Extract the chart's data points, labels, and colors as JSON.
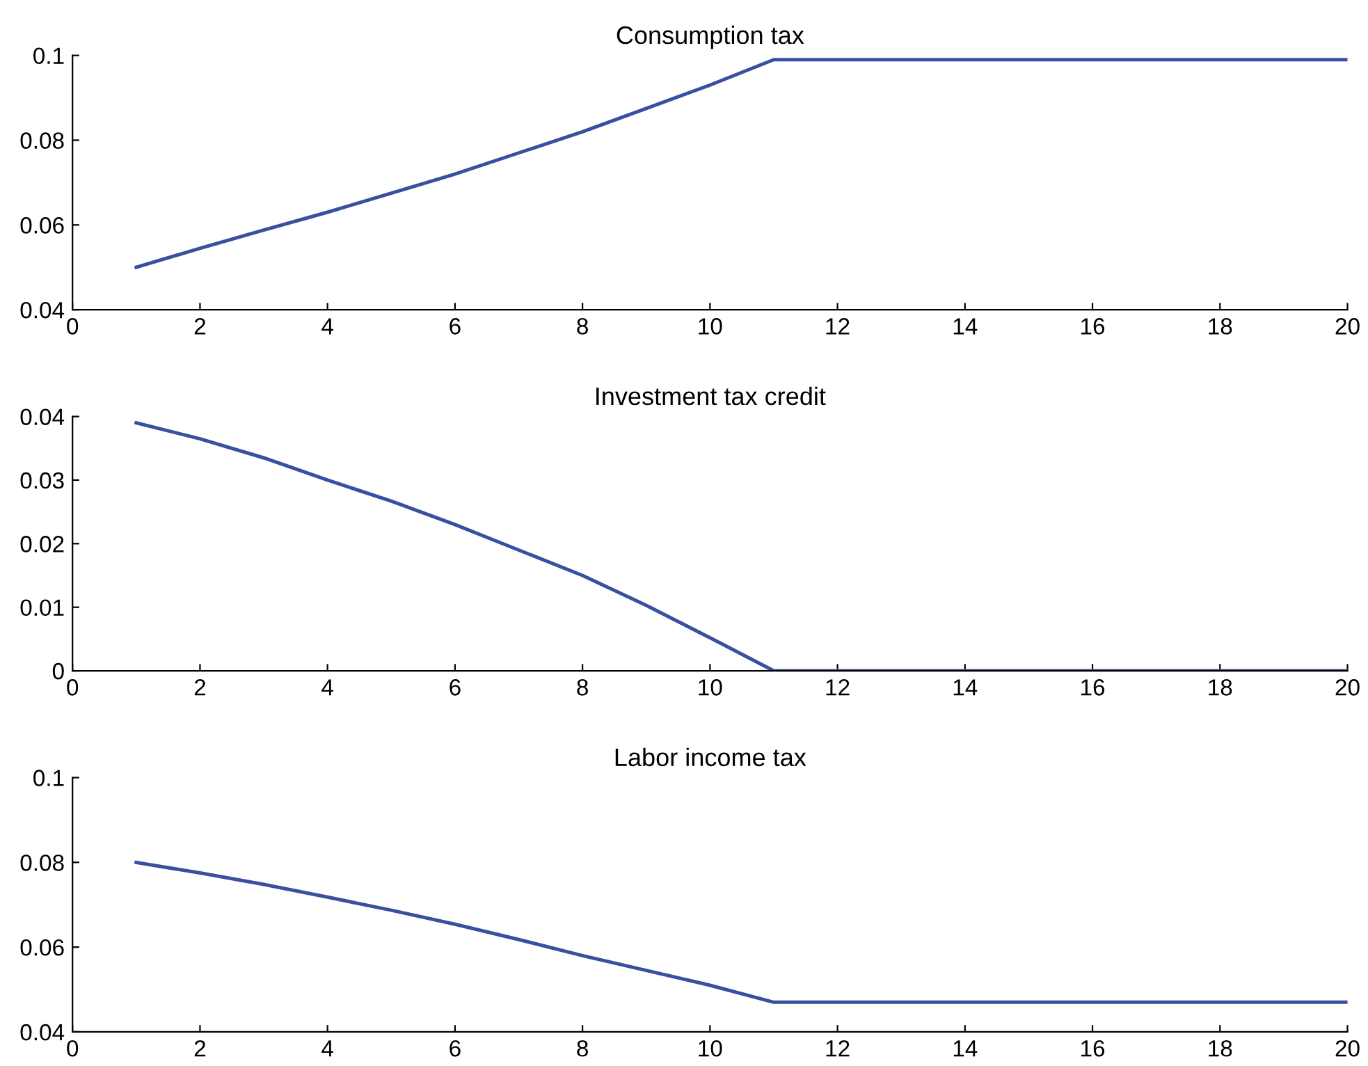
{
  "chart_data": [
    {
      "type": "line",
      "title": "Consumption tax",
      "x": [
        1,
        2,
        3,
        4,
        5,
        6,
        7,
        8,
        9,
        10,
        11,
        12,
        13,
        14,
        15,
        16,
        17,
        18,
        19,
        20
      ],
      "series": [
        {
          "color": "#3a4fa0",
          "values": [
            0.05,
            0.0545,
            0.0588,
            0.063,
            0.0675,
            0.072,
            0.077,
            0.082,
            0.0875,
            0.093,
            0.099,
            0.099,
            0.099,
            0.099,
            0.099,
            0.099,
            0.099,
            0.099,
            0.099,
            0.099
          ]
        }
      ],
      "xlim": [
        0,
        20
      ],
      "xticks": [
        0,
        2,
        4,
        6,
        8,
        10,
        12,
        14,
        16,
        18,
        20
      ],
      "ylim": [
        0.04,
        0.1
      ],
      "yticks": [
        0.04,
        0.06,
        0.08,
        0.1
      ]
    },
    {
      "type": "line",
      "title": "Investment tax credit",
      "x": [
        1,
        2,
        3,
        4,
        5,
        6,
        7,
        8,
        9,
        10,
        11,
        12,
        13,
        14,
        15,
        16,
        17,
        18,
        19,
        20
      ],
      "series": [
        {
          "color": "#3a4fa0",
          "values": [
            0.039,
            0.0365,
            0.0335,
            0.03,
            0.0267,
            0.023,
            0.019,
            0.015,
            0.0103,
            0.0052,
            0,
            0,
            0,
            0,
            0,
            0,
            0,
            0,
            0,
            0
          ]
        }
      ],
      "xlim": [
        0,
        20
      ],
      "xticks": [
        0,
        2,
        4,
        6,
        8,
        10,
        12,
        14,
        16,
        18,
        20
      ],
      "ylim": [
        0,
        0.04
      ],
      "yticks": [
        0,
        0.01,
        0.02,
        0.03,
        0.04
      ]
    },
    {
      "type": "line",
      "title": "Labor income tax",
      "x": [
        1,
        2,
        3,
        4,
        5,
        6,
        7,
        8,
        9,
        10,
        11,
        12,
        13,
        14,
        15,
        16,
        17,
        18,
        19,
        20
      ],
      "series": [
        {
          "color": "#3a4fa0",
          "values": [
            0.08,
            0.0775,
            0.0748,
            0.0718,
            0.0687,
            0.0654,
            0.0618,
            0.058,
            0.0545,
            0.051,
            0.047,
            0.047,
            0.047,
            0.047,
            0.047,
            0.047,
            0.047,
            0.047,
            0.047,
            0.047
          ]
        }
      ],
      "xlim": [
        0,
        20
      ],
      "xticks": [
        0,
        2,
        4,
        6,
        8,
        10,
        12,
        14,
        16,
        18,
        20
      ],
      "ylim": [
        0.04,
        0.1
      ],
      "yticks": [
        0.04,
        0.06,
        0.08,
        0.1
      ]
    }
  ]
}
